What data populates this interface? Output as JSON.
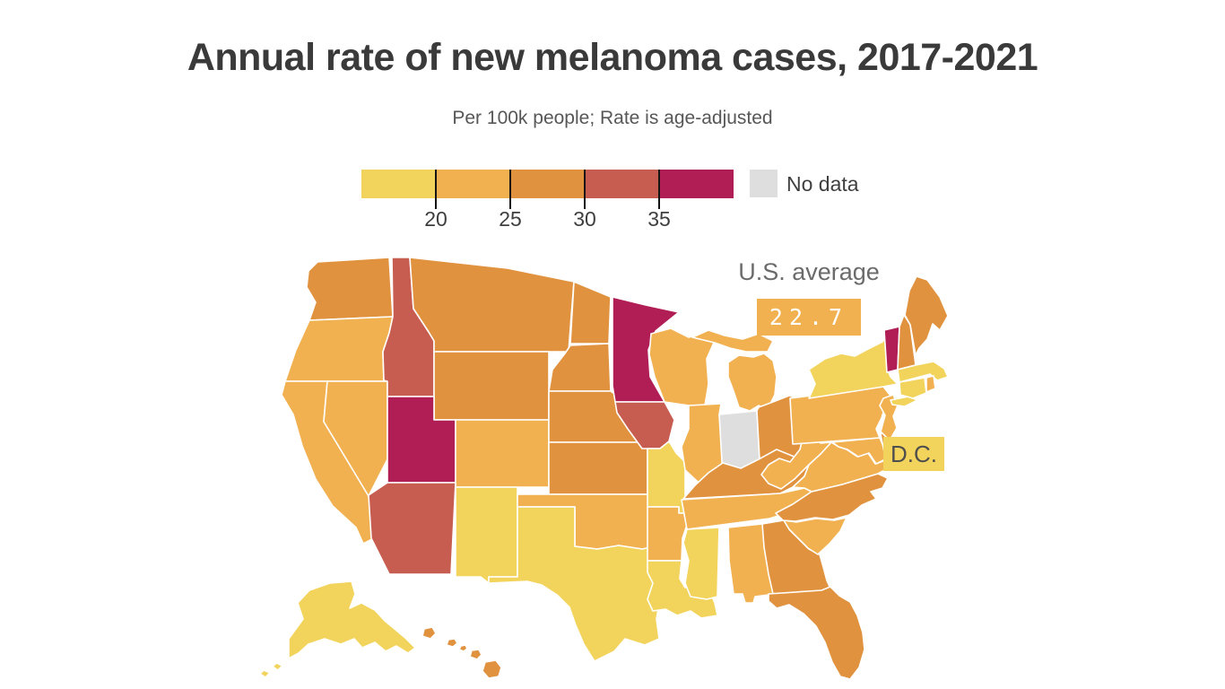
{
  "title": "Annual rate of new melanoma cases, 2017-2021",
  "subtitle": "Per 100k people; Rate is age-adjusted",
  "legend": {
    "bins": [
      {
        "label": "<20",
        "color": "#F2D45C"
      },
      {
        "label": "20-25",
        "color": "#F2B150"
      },
      {
        "label": "25-30",
        "color": "#E0923F"
      },
      {
        "label": "30-35",
        "color": "#C75D50"
      },
      {
        "label": "35+",
        "color": "#B11E55"
      }
    ],
    "tick_labels": [
      "20",
      "25",
      "30",
      "35"
    ],
    "no_data": {
      "label": "No data",
      "color": "#DEDEDE"
    }
  },
  "us_average": {
    "label": "U.S. average",
    "value": "22.7",
    "box_color": "#F2B150",
    "text_color": "#FFFFFF"
  },
  "dc_tag": {
    "text": "D.C.",
    "box_color": "#F2D45C",
    "text_color": "#4e4e4e"
  },
  "map": {
    "states": [
      {
        "id": "WA",
        "name": "Washington",
        "bin": "25-30"
      },
      {
        "id": "OR",
        "name": "Oregon",
        "bin": "20-25"
      },
      {
        "id": "CA",
        "name": "California",
        "bin": "20-25"
      },
      {
        "id": "NV",
        "name": "Nevada",
        "bin": "20-25"
      },
      {
        "id": "ID",
        "name": "Idaho",
        "bin": "30-35"
      },
      {
        "id": "MT",
        "name": "Montana",
        "bin": "25-30"
      },
      {
        "id": "WY",
        "name": "Wyoming",
        "bin": "25-30"
      },
      {
        "id": "UT",
        "name": "Utah",
        "bin": "35+"
      },
      {
        "id": "CO",
        "name": "Colorado",
        "bin": "20-25"
      },
      {
        "id": "AZ",
        "name": "Arizona",
        "bin": "30-35"
      },
      {
        "id": "NM",
        "name": "New Mexico",
        "bin": "<20"
      },
      {
        "id": "ND",
        "name": "North Dakota",
        "bin": "25-30"
      },
      {
        "id": "SD",
        "name": "South Dakota",
        "bin": "25-30"
      },
      {
        "id": "NE",
        "name": "Nebraska",
        "bin": "25-30"
      },
      {
        "id": "KS",
        "name": "Kansas",
        "bin": "25-30"
      },
      {
        "id": "OK",
        "name": "Oklahoma",
        "bin": "20-25"
      },
      {
        "id": "TX",
        "name": "Texas",
        "bin": "<20"
      },
      {
        "id": "MN",
        "name": "Minnesota",
        "bin": "35+"
      },
      {
        "id": "IA",
        "name": "Iowa",
        "bin": "30-35"
      },
      {
        "id": "MO",
        "name": "Missouri",
        "bin": "<20"
      },
      {
        "id": "AR",
        "name": "Arkansas",
        "bin": "20-25"
      },
      {
        "id": "LA",
        "name": "Louisiana",
        "bin": "<20"
      },
      {
        "id": "WI",
        "name": "Wisconsin",
        "bin": "20-25"
      },
      {
        "id": "IL",
        "name": "Illinois",
        "bin": "20-25"
      },
      {
        "id": "MI",
        "name": "Michigan",
        "bin": "20-25"
      },
      {
        "id": "IN",
        "name": "Indiana",
        "bin": "no-data"
      },
      {
        "id": "OH",
        "name": "Ohio",
        "bin": "25-30"
      },
      {
        "id": "KY",
        "name": "Kentucky",
        "bin": "25-30"
      },
      {
        "id": "TN",
        "name": "Tennessee",
        "bin": "20-25"
      },
      {
        "id": "MS",
        "name": "Mississippi",
        "bin": "<20"
      },
      {
        "id": "AL",
        "name": "Alabama",
        "bin": "20-25"
      },
      {
        "id": "GA",
        "name": "Georgia",
        "bin": "25-30"
      },
      {
        "id": "FL",
        "name": "Florida",
        "bin": "25-30"
      },
      {
        "id": "SC",
        "name": "South Carolina",
        "bin": "20-25"
      },
      {
        "id": "NC",
        "name": "North Carolina",
        "bin": "25-30"
      },
      {
        "id": "VA",
        "name": "Virginia",
        "bin": "20-25"
      },
      {
        "id": "WV",
        "name": "West Virginia",
        "bin": "20-25"
      },
      {
        "id": "MD",
        "name": "Maryland",
        "bin": "20-25"
      },
      {
        "id": "DE",
        "name": "Delaware",
        "bin": "25-30"
      },
      {
        "id": "PA",
        "name": "Pennsylvania",
        "bin": "20-25"
      },
      {
        "id": "NJ",
        "name": "New Jersey",
        "bin": "20-25"
      },
      {
        "id": "NY",
        "name": "New York",
        "bin": "<20"
      },
      {
        "id": "VT",
        "name": "Vermont",
        "bin": "35+"
      },
      {
        "id": "NH",
        "name": "New Hampshire",
        "bin": "25-30"
      },
      {
        "id": "ME",
        "name": "Maine",
        "bin": "25-30"
      },
      {
        "id": "MA",
        "name": "Massachusetts",
        "bin": "<20"
      },
      {
        "id": "CT",
        "name": "Connecticut",
        "bin": "<20"
      },
      {
        "id": "RI",
        "name": "Rhode Island",
        "bin": "20-25"
      },
      {
        "id": "AK",
        "name": "Alaska",
        "bin": "<20"
      },
      {
        "id": "HI",
        "name": "Hawaii",
        "bin": "25-30"
      },
      {
        "id": "DC",
        "name": "District of Columbia",
        "bin": "<20"
      }
    ]
  },
  "chart_data": {
    "type": "heatmap",
    "subtype": "us-choropleth",
    "title": "Annual rate of new melanoma cases, 2017-2021",
    "subtitle": "Per 100k people; Rate is age-adjusted",
    "unit": "new melanoma cases per 100k people (age-adjusted)",
    "legend_bin_edges": [
      20,
      25,
      30,
      35
    ],
    "legend_bins": [
      "<20",
      "20-25",
      "25-30",
      "30-35",
      "35+"
    ],
    "legend_colors": [
      "#F2D45C",
      "#F2B150",
      "#E0923F",
      "#C75D50",
      "#B11E55"
    ],
    "no_data_color": "#DEDEDE",
    "us_average": 22.7,
    "values_by_bin": {
      "<20": [
        "NM",
        "TX",
        "MO",
        "LA",
        "MS",
        "NY",
        "MA",
        "CT",
        "AK",
        "DC"
      ],
      "20-25": [
        "OR",
        "CA",
        "NV",
        "CO",
        "OK",
        "AR",
        "WI",
        "IL",
        "MI",
        "TN",
        "AL",
        "SC",
        "VA",
        "WV",
        "MD",
        "PA",
        "NJ",
        "RI"
      ],
      "25-30": [
        "WA",
        "MT",
        "WY",
        "ND",
        "SD",
        "NE",
        "KS",
        "OH",
        "KY",
        "GA",
        "FL",
        "NC",
        "NH",
        "ME",
        "DE",
        "HI"
      ],
      "30-35": [
        "ID",
        "AZ",
        "IA"
      ],
      "35+": [
        "UT",
        "MN",
        "VT"
      ],
      "no-data": [
        "IN"
      ]
    }
  }
}
